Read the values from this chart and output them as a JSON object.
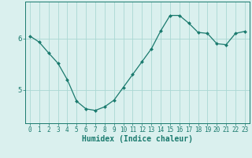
{
  "x": [
    0,
    1,
    2,
    3,
    4,
    5,
    6,
    7,
    8,
    9,
    10,
    11,
    12,
    13,
    14,
    15,
    16,
    17,
    18,
    19,
    20,
    21,
    22,
    23
  ],
  "y": [
    6.05,
    5.93,
    5.72,
    5.52,
    5.2,
    4.78,
    4.63,
    4.6,
    4.67,
    4.8,
    5.05,
    5.3,
    5.55,
    5.8,
    6.15,
    6.45,
    6.45,
    6.3,
    6.12,
    6.1,
    5.9,
    5.88,
    6.1,
    6.14
  ],
  "line_color": "#1a7a6e",
  "marker": "D",
  "marker_size": 2.0,
  "bg_color": "#daf0ee",
  "grid_color": "#aad8d3",
  "xlabel": "Humidex (Indice chaleur)",
  "xlabel_fontsize": 7,
  "xlabel_color": "#1a7a6e",
  "ytick_labels": [
    "5",
    "6"
  ],
  "ytick_values": [
    5.0,
    6.0
  ],
  "xtick_labels": [
    "0",
    "1",
    "2",
    "3",
    "4",
    "5",
    "6",
    "7",
    "8",
    "9",
    "10",
    "11",
    "12",
    "13",
    "14",
    "15",
    "16",
    "17",
    "18",
    "19",
    "20",
    "21",
    "22",
    "23"
  ],
  "ylim": [
    4.35,
    6.72
  ],
  "xlim": [
    -0.5,
    23.5
  ],
  "tick_color": "#1a7a6e",
  "tick_fontsize": 5.5,
  "axis_color": "#1a7a6e",
  "linewidth": 0.9
}
